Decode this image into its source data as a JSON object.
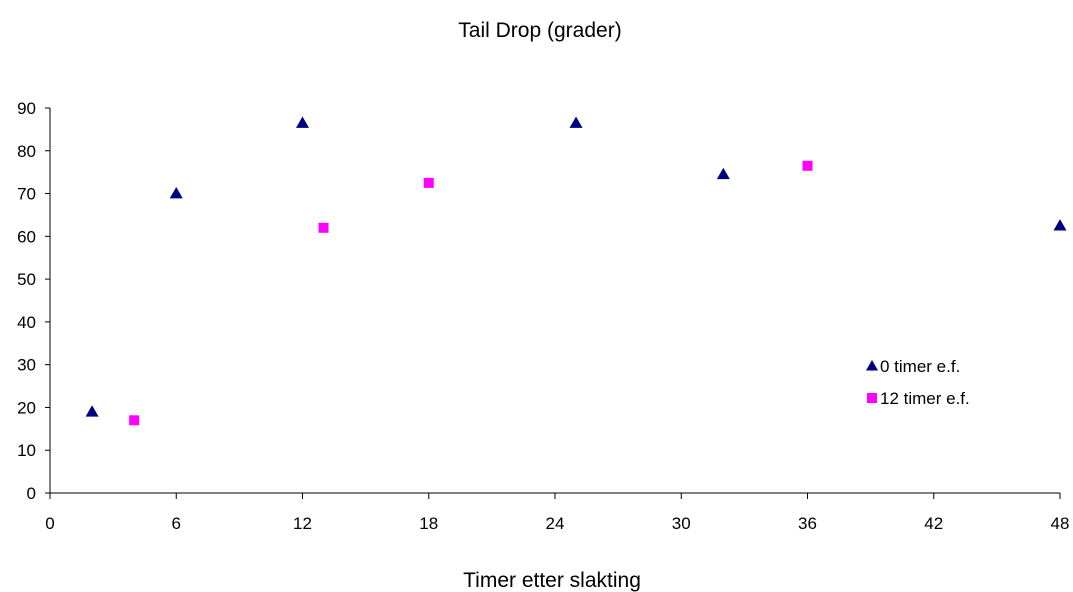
{
  "chart_data": {
    "type": "scatter",
    "title": "Tail Drop (grader)",
    "xlabel": "Timer etter slakting",
    "ylabel": "",
    "xlim": [
      0,
      48
    ],
    "ylim": [
      0,
      90
    ],
    "xticks": [
      0,
      6,
      12,
      18,
      24,
      30,
      36,
      42,
      48
    ],
    "yticks": [
      0,
      10,
      20,
      30,
      40,
      50,
      60,
      70,
      80,
      90
    ],
    "grid": false,
    "legend_position": "right",
    "series": [
      {
        "name": "0 timer e.f.",
        "marker": "triangle",
        "color": "#000080",
        "points": [
          {
            "x": 2,
            "y": 19
          },
          {
            "x": 6,
            "y": 70
          },
          {
            "x": 12,
            "y": 86.5
          },
          {
            "x": 25,
            "y": 86.5
          },
          {
            "x": 32,
            "y": 74.5
          },
          {
            "x": 48,
            "y": 62.5
          }
        ]
      },
      {
        "name": "12 timer e.f.",
        "marker": "square",
        "color": "#FF00FF",
        "points": [
          {
            "x": 4,
            "y": 17
          },
          {
            "x": 13,
            "y": 62
          },
          {
            "x": 18,
            "y": 72.5
          },
          {
            "x": 36,
            "y": 76.5
          }
        ]
      }
    ]
  }
}
